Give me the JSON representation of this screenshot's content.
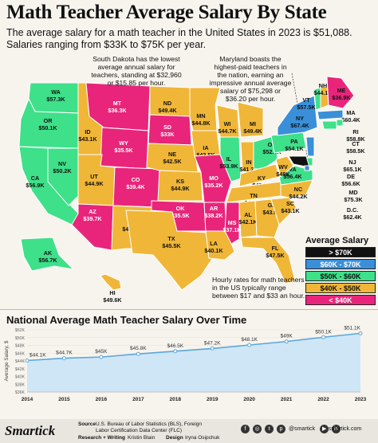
{
  "title": "Math Teacher Average Salary By State",
  "subtitle_line1": "The average salary for a math teacher in the United States in 2023 is $51,088.",
  "subtitle_line2": "Salaries ranging from $33K to $75K per year.",
  "callouts": {
    "sd": "South Dakota has the lowest average annual salary for teachers, standing at $32,960 or $15.85 per hour.",
    "md": "Maryland boasts the highest-paid teachers in the nation, earning an impressive annual average salary of $75,298 or $36.20 per hour.",
    "hourly": "Hourly rates for math teachers in the US typically range between $17 and $33 an hour."
  },
  "colors": {
    "c70": "#111111",
    "c60": "#3a8fd8",
    "c50": "#3ee08a",
    "c40": "#f0b637",
    "clt": "#e8257a",
    "line": "#5aa6dc",
    "area": "#cfe6f7"
  },
  "legend": {
    "title": "Average Salary",
    "items": [
      {
        "label": "> $70K",
        "color": "#111111",
        "text_color": "#ffffff"
      },
      {
        "label": "$60K - $70K",
        "color": "#3a8fd8",
        "text_color": "#ffffff"
      },
      {
        "label": "$50K - $60K",
        "color": "#3ee08a",
        "text_color": "#111111"
      },
      {
        "label": "$40K - $50K",
        "color": "#f0b637",
        "text_color": "#111111"
      },
      {
        "label": "< $40K",
        "color": "#e8257a",
        "text_color": "#ffffff"
      }
    ]
  },
  "states": [
    {
      "abbr": "WA",
      "value": "$57.3K"
    },
    {
      "abbr": "OR",
      "value": "$50.1K"
    },
    {
      "abbr": "CA",
      "value": "$56.9K"
    },
    {
      "abbr": "NV",
      "value": "$50.2K"
    },
    {
      "abbr": "ID",
      "value": "$43.1K"
    },
    {
      "abbr": "MT",
      "value": "$36.3K"
    },
    {
      "abbr": "WY",
      "value": "$35.5K"
    },
    {
      "abbr": "UT",
      "value": "$44.9K"
    },
    {
      "abbr": "AZ",
      "value": "$39.7K"
    },
    {
      "abbr": "CO",
      "value": "$39.4K"
    },
    {
      "abbr": "NM",
      "value": "$41.5K"
    },
    {
      "abbr": "ND",
      "value": "$49.4K"
    },
    {
      "abbr": "SD",
      "value": "$33K"
    },
    {
      "abbr": "NE",
      "value": "$42.5K"
    },
    {
      "abbr": "KS",
      "value": "$44.9K"
    },
    {
      "abbr": "OK",
      "value": "$35.5K"
    },
    {
      "abbr": "TX",
      "value": "$45.5K"
    },
    {
      "abbr": "MN",
      "value": "$44.8K"
    },
    {
      "abbr": "IA",
      "value": "$43.5K"
    },
    {
      "abbr": "MO",
      "value": "$35.2K"
    },
    {
      "abbr": "AR",
      "value": "$38.2K"
    },
    {
      "abbr": "LA",
      "value": "$40.1K"
    },
    {
      "abbr": "WI",
      "value": "$44.7K"
    },
    {
      "abbr": "IL",
      "value": "$53.9K"
    },
    {
      "abbr": "MI",
      "value": "$49.4K"
    },
    {
      "abbr": "IN",
      "value": "$41.2K"
    },
    {
      "abbr": "OH",
      "value": "$52.6K"
    },
    {
      "abbr": "KY",
      "value": "$43.9K"
    },
    {
      "abbr": "TN",
      "value": "$40.8K"
    },
    {
      "abbr": "MS",
      "value": "$37.1K"
    },
    {
      "abbr": "AL",
      "value": "$42.1K"
    },
    {
      "abbr": "GA",
      "value": "$43.9K"
    },
    {
      "abbr": "FL",
      "value": "$47.5K"
    },
    {
      "abbr": "SC",
      "value": "$43.1K"
    },
    {
      "abbr": "NC",
      "value": "$44.2K"
    },
    {
      "abbr": "VA",
      "value": "$56.4K"
    },
    {
      "abbr": "WV",
      "value": "$48K"
    },
    {
      "abbr": "PA",
      "value": "$54.1K"
    },
    {
      "abbr": "NY",
      "value": "$67.4K"
    },
    {
      "abbr": "VT",
      "value": "$57.5K"
    },
    {
      "abbr": "NH",
      "value": "$44.1K"
    },
    {
      "abbr": "ME",
      "value": "$36.9K"
    },
    {
      "abbr": "MA",
      "value": "$60.4K"
    },
    {
      "abbr": "RI",
      "value": "$58.8K"
    },
    {
      "abbr": "CT",
      "value": "$58.5K"
    },
    {
      "abbr": "NJ",
      "value": "$65.1K"
    },
    {
      "abbr": "DE",
      "value": "$56.6K"
    },
    {
      "abbr": "MD",
      "value": "$75.3K"
    },
    {
      "abbr": "D.C.",
      "value": "$62.4K"
    },
    {
      "abbr": "AK",
      "value": "$56.7K"
    },
    {
      "abbr": "HI",
      "value": "$49.6K"
    }
  ],
  "national": {
    "title": "National Average Math Teacher Salary Over Time"
  },
  "chart_data": {
    "type": "area",
    "title": "National Average Math Teacher Salary Over Time",
    "xlabel": "",
    "ylabel": "Average Salary, $",
    "x": [
      2014,
      2015,
      2016,
      2017,
      2018,
      2019,
      2020,
      2021,
      2022,
      2023
    ],
    "series": [
      {
        "values": [
          44.1,
          44.7,
          45.0,
          45.8,
          46.5,
          47.2,
          48.1,
          49.0,
          50.1,
          51.1
        ]
      }
    ],
    "data_labels": [
      "$44.1K",
      "$44.7K",
      "$45K",
      "$45.8K",
      "$46.5K",
      "$47.2K",
      "$48.1K",
      "$49K",
      "$50.1K",
      "$51.1K"
    ],
    "y_ticks": [
      "$36K",
      "$38K",
      "$40K",
      "$42K",
      "$44K",
      "$46K",
      "$48K",
      "$50K",
      "$52K"
    ],
    "ylim": [
      36,
      52
    ],
    "grid": true
  },
  "footer": {
    "logo": "Smartick",
    "source_label": "Source",
    "source_value": "U.S. Bureau of Labor Statistics (BLS), Foreign Labor Certification Data Center (FLC)",
    "research_label": "Research + Writing",
    "research_value": "Kristin Blain",
    "design_label": "Design",
    "design_value": "Iryna Osipchuk",
    "handle": "@smartick",
    "site": "smartick.com"
  }
}
